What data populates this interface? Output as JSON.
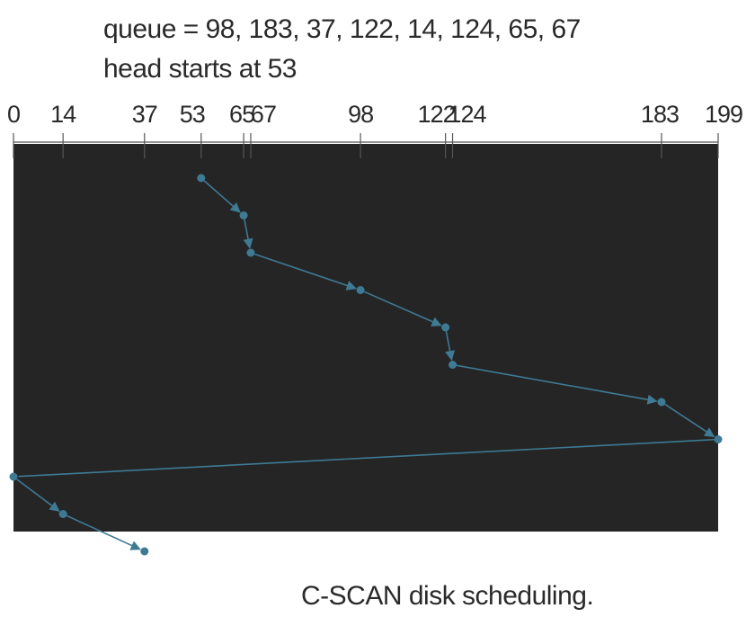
{
  "header": {
    "queue_text": "queue = 98, 183, 37, 122, 14, 124, 65, 67",
    "head_text": "head starts at 53"
  },
  "axis": {
    "min": 0,
    "max": 199,
    "tick_labels": [
      0,
      14,
      37,
      53,
      65,
      67,
      98,
      122,
      124,
      183,
      199
    ]
  },
  "service_order": [
    53,
    65,
    67,
    98,
    122,
    124,
    183,
    199,
    0,
    14,
    37
  ],
  "colors": {
    "panel": "#252525",
    "path": "#3e7a94",
    "text": "#2a2a2a",
    "axis": "#555555"
  },
  "caption": "C-SCAN disk scheduling."
}
